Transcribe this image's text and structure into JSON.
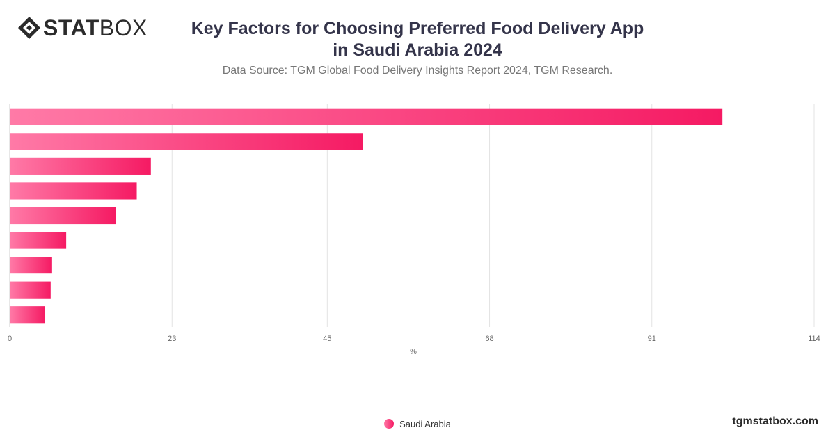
{
  "brand": {
    "logo_bold": "STAT",
    "logo_light": "BOX",
    "site": "tgmstatbox.com"
  },
  "colors": {
    "bar_start": "#ff7aa7",
    "bar_end": "#f51a63",
    "grid": "#e3e3e3"
  },
  "chart_data": {
    "type": "bar",
    "orientation": "horizontal",
    "title_line1": "Key Factors for Choosing Preferred Food Delivery App",
    "title_line2": "in Saudi Arabia 2024",
    "subtitle": "Data Source: TGM Global Food Delivery Insights Report 2024, TGM Research.",
    "xlabel": "%",
    "xlim": [
      0,
      114
    ],
    "xticks": [
      0,
      23,
      45,
      68,
      91,
      114
    ],
    "grid": true,
    "legend_position": "bottom-center",
    "series": [
      {
        "name": "Saudi Arabia",
        "values": [
          101,
          50,
          20,
          18,
          15,
          8,
          6,
          5.8,
          5
        ]
      }
    ]
  }
}
